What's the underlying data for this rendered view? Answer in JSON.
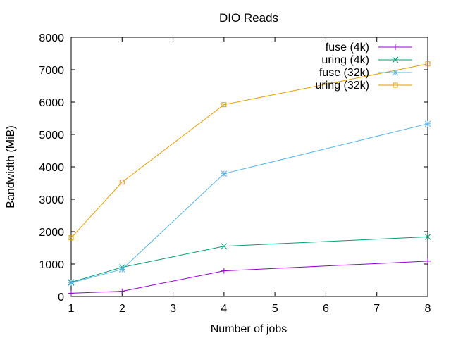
{
  "chart_data": {
    "type": "line",
    "title": "DIO Reads",
    "xlabel": "Number of jobs",
    "ylabel": "Bandwidth (MiB)",
    "xlim": [
      1,
      8
    ],
    "ylim": [
      0,
      8000
    ],
    "x_ticks": [
      1,
      2,
      3,
      4,
      5,
      6,
      7,
      8
    ],
    "y_ticks": [
      0,
      1000,
      2000,
      3000,
      4000,
      5000,
      6000,
      7000,
      8000
    ],
    "grid": false,
    "legend_position": "top-right",
    "x": [
      1,
      2,
      4,
      8
    ],
    "series": [
      {
        "name": "fuse (4k)",
        "color": "#9400d3",
        "marker": "plus",
        "values": [
          100,
          160,
          790,
          1090
        ]
      },
      {
        "name": "uring (4k)",
        "color": "#009e73",
        "marker": "cross",
        "values": [
          440,
          900,
          1550,
          1840
        ]
      },
      {
        "name": "fuse (32k)",
        "color": "#56b4e9",
        "marker": "star",
        "values": [
          420,
          840,
          3790,
          5330
        ]
      },
      {
        "name": "uring (32k)",
        "color": "#e69f00",
        "marker": "square",
        "values": [
          1810,
          3530,
          5920,
          7180
        ]
      }
    ]
  }
}
